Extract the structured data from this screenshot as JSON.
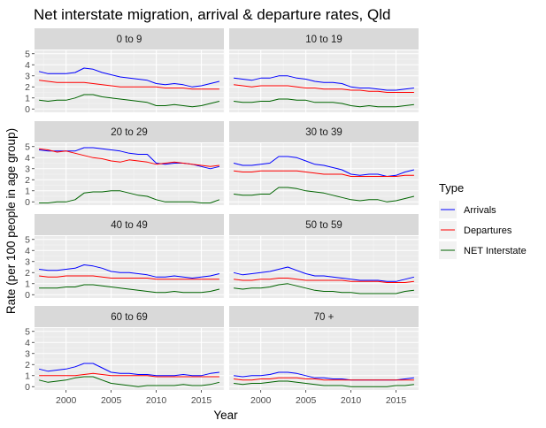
{
  "chart_data": {
    "type": "line",
    "title": "Net interstate migration, arrival & departure rates, Qld",
    "xlabel": "Year",
    "ylabel": "Rate (per 100 people in age group)",
    "xlim": [
      1996.5,
      2017.5
    ],
    "ylim": [
      -0.3,
      5.3
    ],
    "x_ticks": [
      2000,
      2005,
      2010,
      2015
    ],
    "y_ticks": [
      0,
      1,
      2,
      3,
      4,
      5
    ],
    "grid": true,
    "legend": {
      "title": "Type",
      "position": "right",
      "entries": [
        {
          "label": "Arrivals",
          "color": "#0000ff"
        },
        {
          "label": "Departures",
          "color": "#ff0000"
        },
        {
          "label": "NET Interstate",
          "color": "#006400"
        }
      ]
    },
    "x": [
      1997,
      1998,
      1999,
      2000,
      2001,
      2002,
      2003,
      2004,
      2005,
      2006,
      2007,
      2008,
      2009,
      2010,
      2011,
      2012,
      2013,
      2014,
      2015,
      2016,
      2017
    ],
    "panels": [
      {
        "label": "0 to 9",
        "series": [
          {
            "name": "Arrivals",
            "values": [
              3.4,
              3.2,
              3.2,
              3.2,
              3.3,
              3.7,
              3.6,
              3.3,
              3.1,
              2.9,
              2.8,
              2.7,
              2.6,
              2.3,
              2.2,
              2.3,
              2.2,
              2.0,
              2.1,
              2.3,
              2.5
            ]
          },
          {
            "name": "Departures",
            "values": [
              2.6,
              2.5,
              2.4,
              2.4,
              2.4,
              2.4,
              2.3,
              2.2,
              2.1,
              2.0,
              2.0,
              2.0,
              2.0,
              2.0,
              1.9,
              1.9,
              1.9,
              1.8,
              1.8,
              1.8,
              1.8
            ]
          },
          {
            "name": "NET Interstate",
            "values": [
              0.8,
              0.7,
              0.8,
              0.8,
              1.0,
              1.3,
              1.3,
              1.1,
              1.0,
              0.9,
              0.8,
              0.7,
              0.6,
              0.3,
              0.3,
              0.4,
              0.3,
              0.2,
              0.3,
              0.5,
              0.7
            ]
          }
        ]
      },
      {
        "label": "10 to 19",
        "series": [
          {
            "name": "Arrivals",
            "values": [
              2.8,
              2.7,
              2.6,
              2.8,
              2.8,
              3.0,
              3.0,
              2.8,
              2.7,
              2.5,
              2.4,
              2.4,
              2.3,
              2.0,
              1.9,
              1.9,
              1.8,
              1.7,
              1.7,
              1.8,
              1.9
            ]
          },
          {
            "name": "Departures",
            "values": [
              2.2,
              2.1,
              2.0,
              2.1,
              2.1,
              2.1,
              2.1,
              2.0,
              1.9,
              1.9,
              1.8,
              1.8,
              1.8,
              1.7,
              1.7,
              1.6,
              1.6,
              1.5,
              1.5,
              1.5,
              1.5
            ]
          },
          {
            "name": "NET Interstate",
            "values": [
              0.7,
              0.6,
              0.6,
              0.7,
              0.7,
              0.9,
              0.9,
              0.8,
              0.8,
              0.6,
              0.6,
              0.6,
              0.5,
              0.3,
              0.2,
              0.3,
              0.2,
              0.2,
              0.2,
              0.3,
              0.4
            ]
          }
        ]
      },
      {
        "label": "20 to 29",
        "series": [
          {
            "name": "Arrivals",
            "values": [
              4.7,
              4.6,
              4.6,
              4.6,
              4.6,
              4.9,
              4.9,
              4.8,
              4.7,
              4.6,
              4.4,
              4.3,
              4.3,
              3.5,
              3.4,
              3.5,
              3.5,
              3.4,
              3.2,
              3.0,
              3.2
            ]
          },
          {
            "name": "Departures",
            "values": [
              4.8,
              4.7,
              4.5,
              4.6,
              4.4,
              4.2,
              4.0,
              3.9,
              3.7,
              3.6,
              3.8,
              3.7,
              3.6,
              3.4,
              3.5,
              3.6,
              3.5,
              3.4,
              3.3,
              3.2,
              3.3
            ]
          },
          {
            "name": "NET Interstate",
            "values": [
              -0.1,
              -0.1,
              0.0,
              0.0,
              0.2,
              0.8,
              0.9,
              0.9,
              1.0,
              1.0,
              0.8,
              0.6,
              0.5,
              0.2,
              0.0,
              0.0,
              0.0,
              0.0,
              -0.1,
              -0.1,
              0.2
            ]
          }
        ]
      },
      {
        "label": "30 to 39",
        "series": [
          {
            "name": "Arrivals",
            "values": [
              3.5,
              3.3,
              3.3,
              3.4,
              3.5,
              4.1,
              4.1,
              4.0,
              3.7,
              3.4,
              3.3,
              3.1,
              2.9,
              2.5,
              2.4,
              2.5,
              2.5,
              2.3,
              2.4,
              2.7,
              2.9
            ]
          },
          {
            "name": "Departures",
            "values": [
              2.8,
              2.7,
              2.7,
              2.8,
              2.8,
              2.8,
              2.8,
              2.8,
              2.7,
              2.6,
              2.5,
              2.5,
              2.5,
              2.3,
              2.3,
              2.3,
              2.3,
              2.3,
              2.3,
              2.4,
              2.4
            ]
          },
          {
            "name": "NET Interstate",
            "values": [
              0.7,
              0.6,
              0.6,
              0.7,
              0.7,
              1.3,
              1.3,
              1.2,
              1.0,
              0.9,
              0.8,
              0.6,
              0.4,
              0.2,
              0.1,
              0.2,
              0.2,
              0.0,
              0.1,
              0.3,
              0.5
            ]
          }
        ]
      },
      {
        "label": "40 to 49",
        "series": [
          {
            "name": "Arrivals",
            "values": [
              2.3,
              2.2,
              2.2,
              2.3,
              2.4,
              2.7,
              2.6,
              2.4,
              2.1,
              2.0,
              2.0,
              1.9,
              1.8,
              1.6,
              1.6,
              1.7,
              1.6,
              1.5,
              1.6,
              1.7,
              1.9
            ]
          },
          {
            "name": "Departures",
            "values": [
              1.7,
              1.6,
              1.6,
              1.7,
              1.7,
              1.7,
              1.7,
              1.6,
              1.5,
              1.5,
              1.5,
              1.5,
              1.5,
              1.4,
              1.4,
              1.4,
              1.4,
              1.4,
              1.4,
              1.4,
              1.4
            ]
          },
          {
            "name": "NET Interstate",
            "values": [
              0.6,
              0.6,
              0.6,
              0.7,
              0.7,
              0.9,
              0.9,
              0.8,
              0.7,
              0.6,
              0.5,
              0.4,
              0.3,
              0.2,
              0.2,
              0.3,
              0.2,
              0.2,
              0.2,
              0.3,
              0.5
            ]
          }
        ]
      },
      {
        "label": "50 to 59",
        "series": [
          {
            "name": "Arrivals",
            "values": [
              2.0,
              1.8,
              1.9,
              2.0,
              2.1,
              2.3,
              2.5,
              2.2,
              1.9,
              1.7,
              1.7,
              1.6,
              1.5,
              1.4,
              1.3,
              1.3,
              1.3,
              1.2,
              1.2,
              1.4,
              1.6
            ]
          },
          {
            "name": "Departures",
            "values": [
              1.4,
              1.3,
              1.3,
              1.4,
              1.4,
              1.5,
              1.5,
              1.4,
              1.3,
              1.3,
              1.3,
              1.3,
              1.3,
              1.2,
              1.2,
              1.2,
              1.2,
              1.1,
              1.1,
              1.1,
              1.2
            ]
          },
          {
            "name": "NET Interstate",
            "values": [
              0.6,
              0.5,
              0.6,
              0.6,
              0.7,
              0.9,
              1.0,
              0.8,
              0.6,
              0.4,
              0.3,
              0.3,
              0.2,
              0.2,
              0.1,
              0.1,
              0.1,
              0.1,
              0.1,
              0.3,
              0.4
            ]
          }
        ]
      },
      {
        "label": "60 to 69",
        "series": [
          {
            "name": "Arrivals",
            "values": [
              1.6,
              1.4,
              1.5,
              1.6,
              1.8,
              2.1,
              2.1,
              1.7,
              1.3,
              1.2,
              1.2,
              1.1,
              1.1,
              1.0,
              1.0,
              1.0,
              1.1,
              1.0,
              1.0,
              1.2,
              1.3
            ]
          },
          {
            "name": "Departures",
            "values": [
              1.0,
              1.0,
              1.0,
              1.0,
              1.0,
              1.1,
              1.2,
              1.1,
              1.0,
              1.0,
              1.0,
              1.0,
              1.0,
              0.9,
              0.9,
              0.9,
              0.9,
              0.9,
              0.9,
              0.9,
              0.9
            ]
          },
          {
            "name": "NET Interstate",
            "values": [
              0.6,
              0.4,
              0.5,
              0.6,
              0.8,
              0.9,
              0.9,
              0.6,
              0.3,
              0.2,
              0.1,
              0.0,
              0.1,
              0.1,
              0.1,
              0.1,
              0.2,
              0.1,
              0.1,
              0.2,
              0.4
            ]
          }
        ]
      },
      {
        "label": "70 +",
        "series": [
          {
            "name": "Arrivals",
            "values": [
              1.0,
              0.9,
              1.0,
              1.0,
              1.1,
              1.3,
              1.3,
              1.2,
              1.0,
              0.8,
              0.8,
              0.7,
              0.7,
              0.6,
              0.6,
              0.6,
              0.6,
              0.6,
              0.6,
              0.7,
              0.8
            ]
          },
          {
            "name": "Departures",
            "values": [
              0.7,
              0.6,
              0.6,
              0.7,
              0.7,
              0.8,
              0.8,
              0.8,
              0.7,
              0.7,
              0.6,
              0.6,
              0.6,
              0.6,
              0.6,
              0.6,
              0.6,
              0.6,
              0.6,
              0.6,
              0.6
            ]
          },
          {
            "name": "NET Interstate",
            "values": [
              0.3,
              0.2,
              0.3,
              0.3,
              0.4,
              0.5,
              0.5,
              0.4,
              0.3,
              0.2,
              0.1,
              0.1,
              0.1,
              0.0,
              0.0,
              0.0,
              0.0,
              0.0,
              0.1,
              0.1,
              0.2
            ]
          }
        ]
      }
    ]
  }
}
